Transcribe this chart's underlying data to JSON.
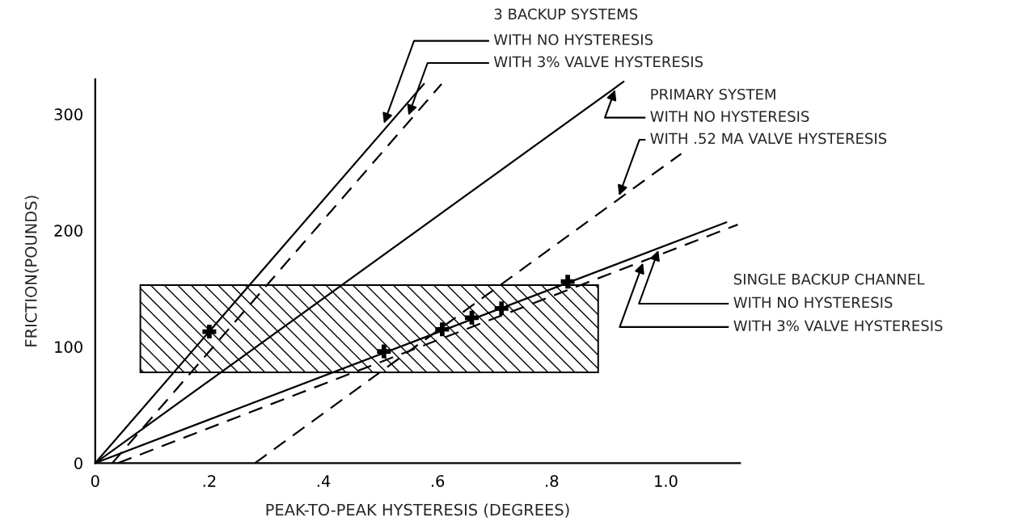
{
  "chart_data": {
    "type": "line",
    "xlabel": "PEAK-TO-PEAK HYSTERESIS (DEGREES)",
    "ylabel": "FRICTION(POUNDS)",
    "xlim": [
      0,
      1.13
    ],
    "ylim": [
      0,
      330
    ],
    "xticks": [
      {
        "value": 0,
        "label": "0"
      },
      {
        "value": 0.2,
        "label": ".2"
      },
      {
        "value": 0.4,
        "label": ".4"
      },
      {
        "value": 0.6,
        "label": ".6"
      },
      {
        "value": 0.8,
        "label": ".8"
      },
      {
        "value": 1.0,
        "label": "1.0"
      }
    ],
    "yticks": [
      0,
      100,
      200,
      300
    ],
    "grid": false,
    "legend": false,
    "series": [
      {
        "color": "#000000",
        "line_style": "solid",
        "x": [
          0,
          0.576
        ],
        "values": [
          0,
          326
        ]
      },
      {
        "color": "#000000",
        "line_style": "dashed",
        "x": [
          0.03,
          0.607
        ],
        "values": [
          0,
          326
        ]
      },
      {
        "color": "#000000",
        "line_style": "solid",
        "x": [
          0,
          0.926
        ],
        "values": [
          0,
          328
        ]
      },
      {
        "color": "#000000",
        "line_style": "dashed",
        "x": [
          0.28,
          1.027
        ],
        "values": [
          0,
          266
        ]
      },
      {
        "color": "#000000",
        "line_style": "solid",
        "x": [
          0,
          1.106
        ],
        "values": [
          0,
          207
        ]
      },
      {
        "color": "#000000",
        "line_style": "dashed",
        "x": [
          0.04,
          1.126
        ],
        "values": [
          0,
          205
        ]
      },
      {
        "type": "scatter",
        "color": "#000000",
        "marker": "cross",
        "x": [
          0.2,
          0.506,
          0.608,
          0.66,
          0.712,
          0.828
        ],
        "values": [
          113,
          96,
          115,
          125,
          133,
          156
        ]
      }
    ],
    "bands": [
      {
        "axis": "y",
        "from": 78,
        "to": 153,
        "color": "#000000"
      }
    ],
    "annotations": [
      "3 BACKUP SYSTEMS",
      {
        "text": "WITH NO HYSTERESIS",
        "x": 0.506,
        "y": 292
      },
      {
        "text": "WITH 3% VALVE HYSTERESIS",
        "x": 0.549,
        "y": 299
      },
      "PRIMARY SYSTEM",
      {
        "text": "WITH NO HYSTERESIS",
        "x": 0.911,
        "y": 321
      },
      {
        "text": "WITH .52 MA VALVE HYSTERESIS",
        "x": 0.918,
        "y": 230
      },
      "SINGLE BACKUP CHANNEL",
      {
        "text": "WITH NO HYSTERESIS",
        "x": 0.987,
        "y": 183
      },
      {
        "text": "WITH 3% VALVE HYSTERESIS",
        "x": 0.96,
        "y": 172
      }
    ]
  }
}
